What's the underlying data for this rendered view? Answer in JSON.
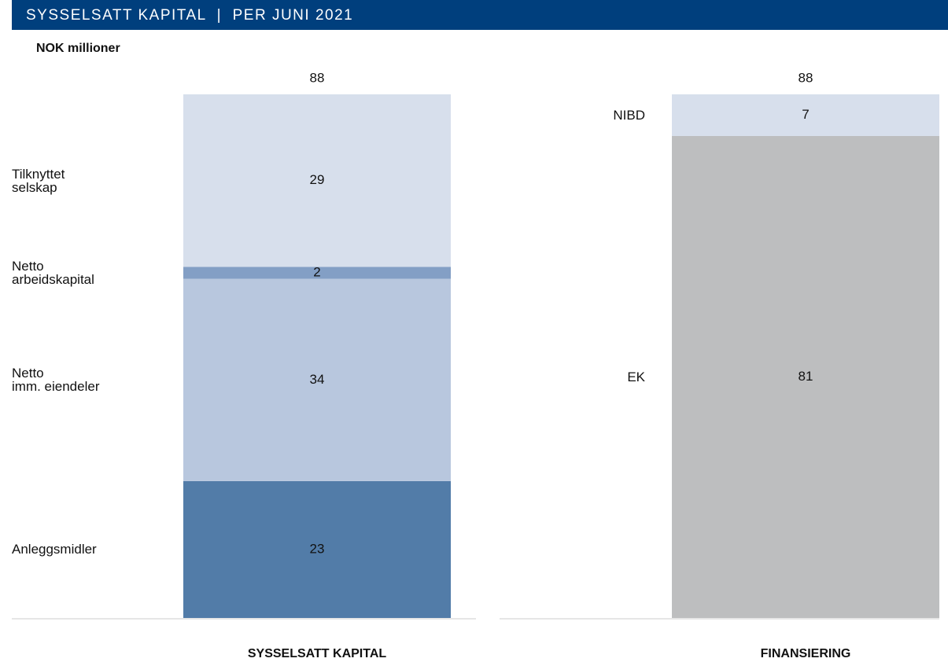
{
  "header": {
    "title": "SYSSELSATT KAPITAL  |  PER JUNI 2021",
    "subtitle": "NOK millioner"
  },
  "chart_data": [
    {
      "type": "stacked_bar",
      "category": "SYSSELSATT KAPITAL",
      "total": 88,
      "series": [
        {
          "name": "Anleggsmidler",
          "color": "#527ca8",
          "values": [
            23
          ]
        },
        {
          "name": "Netto\nimm. eiendeler",
          "color": "#b8c7de",
          "values": [
            34
          ]
        },
        {
          "name": "Netto\narbeidskapital",
          "color": "#839fc5",
          "values": [
            2
          ]
        },
        {
          "name": "Tilknyttet\nselskap",
          "color": "#d7dfec",
          "values": [
            29
          ]
        }
      ]
    },
    {
      "type": "stacked_bar",
      "category": "FINANSIERING",
      "total": 88,
      "series": [
        {
          "name": "EK",
          "color": "#bdbebf",
          "values": [
            81
          ]
        },
        {
          "name": "NIBD",
          "color": "#d7dfec",
          "values": [
            7
          ]
        }
      ]
    }
  ]
}
